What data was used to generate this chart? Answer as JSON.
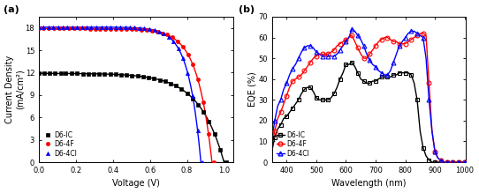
{
  "jv": {
    "D6-IC": {
      "color": "black",
      "marker": "s",
      "Jsc": 11.9,
      "Voc": 1.0,
      "FF": 0.635,
      "n_markers": 35
    },
    "D6-4F": {
      "color": "red",
      "marker": "o",
      "Jsc": 17.9,
      "Voc": 0.935,
      "FF": 0.725,
      "n_markers": 35
    },
    "D6-4Cl": {
      "color": "blue",
      "marker": "^",
      "Jsc": 18.1,
      "Voc": 0.875,
      "FF": 0.745,
      "n_markers": 35
    }
  },
  "eqe": {
    "wavelength": [
      350,
      360,
      370,
      380,
      390,
      400,
      410,
      420,
      430,
      440,
      450,
      460,
      470,
      480,
      490,
      500,
      510,
      520,
      530,
      540,
      550,
      560,
      570,
      580,
      590,
      600,
      610,
      620,
      630,
      640,
      650,
      660,
      670,
      680,
      690,
      700,
      710,
      720,
      730,
      740,
      750,
      760,
      770,
      780,
      790,
      800,
      810,
      820,
      830,
      840,
      850,
      860,
      870,
      880,
      890,
      900,
      910,
      920,
      930,
      940,
      950,
      960,
      970,
      980,
      990,
      1000
    ],
    "D6-IC": [
      5,
      12,
      16,
      18,
      21,
      22,
      24,
      26,
      28,
      30,
      33,
      35,
      36,
      36,
      34,
      31,
      30,
      30,
      30,
      30,
      31,
      33,
      36,
      40,
      43,
      47,
      47,
      48,
      46,
      43,
      40,
      39,
      38,
      38,
      39,
      39,
      40,
      41,
      41,
      41,
      41,
      42,
      42,
      43,
      43,
      43,
      43,
      42,
      38,
      30,
      15,
      7,
      3,
      1,
      0,
      0,
      0,
      0,
      0,
      0,
      0,
      0,
      0,
      0,
      0,
      0
    ],
    "D6-4F": [
      7,
      15,
      21,
      24,
      28,
      32,
      36,
      39,
      40,
      41,
      42,
      44,
      46,
      48,
      50,
      51,
      52,
      52,
      52,
      52,
      53,
      54,
      56,
      57,
      58,
      59,
      60,
      61,
      58,
      55,
      52,
      50,
      50,
      52,
      54,
      56,
      58,
      59,
      60,
      60,
      59,
      58,
      58,
      57,
      57,
      57,
      58,
      59,
      60,
      61,
      62,
      62,
      61,
      38,
      15,
      5,
      2,
      1,
      0,
      0,
      0,
      0,
      0,
      0,
      0,
      0
    ],
    "D6-4Cl": [
      10,
      20,
      27,
      30,
      35,
      38,
      42,
      45,
      47,
      50,
      53,
      55,
      56,
      56,
      55,
      53,
      52,
      51,
      51,
      51,
      51,
      51,
      52,
      54,
      56,
      58,
      60,
      64,
      63,
      61,
      59,
      56,
      52,
      49,
      47,
      46,
      44,
      43,
      42,
      42,
      44,
      48,
      52,
      56,
      58,
      60,
      62,
      63,
      63,
      62,
      61,
      60,
      50,
      30,
      15,
      5,
      2,
      1,
      0,
      0,
      0,
      0,
      0,
      0,
      0,
      0
    ],
    "marker_step_nm": 20
  },
  "panel_labels": [
    "(a)",
    "(b)"
  ],
  "jv_xlabel": "Voltage (V)",
  "jv_ylabel": "Current Density\n(mA/cm²)",
  "eqe_xlabel": "Wavelength (nm)",
  "eqe_ylabel": "EQE (%)",
  "jv_xlim": [
    0,
    1.05
  ],
  "jv_ylim": [
    0,
    19.5
  ],
  "eqe_xlim": [
    350,
    1005
  ],
  "eqe_ylim": [
    0,
    70
  ],
  "jv_xticks": [
    0.0,
    0.2,
    0.4,
    0.6,
    0.8,
    1.0
  ],
  "jv_yticks": [
    0,
    3,
    6,
    9,
    12,
    15,
    18
  ],
  "eqe_xticks": [
    400,
    500,
    600,
    700,
    800,
    900,
    1000
  ],
  "eqe_yticks": [
    0,
    10,
    20,
    30,
    40,
    50,
    60,
    70
  ],
  "colors": {
    "D6-IC": "black",
    "D6-4F": "red",
    "D6-4Cl": "blue"
  },
  "jv_markers": {
    "D6-IC": "s",
    "D6-4F": "o",
    "D6-4Cl": "^"
  },
  "eqe_markers": {
    "D6-IC": "s",
    "D6-4F": "o",
    "D6-4Cl": "^"
  },
  "legend_labels": [
    "D6-IC",
    "D6-4F",
    "D6-4Cl"
  ]
}
